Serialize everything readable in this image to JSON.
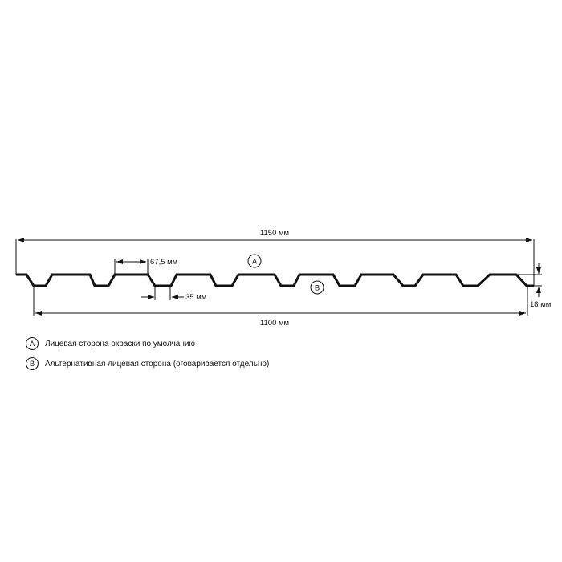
{
  "dimensions": {
    "overall_width": "1150 мм",
    "useful_width": "1100 мм",
    "top_width": "67,5 мм",
    "bottom_width": "35 мм",
    "height": "18 мм"
  },
  "markers": {
    "a": "A",
    "b": "B"
  },
  "legend": [
    {
      "marker": "A",
      "text": "Лицевая сторона окраски по умолчанию"
    },
    {
      "marker": "B",
      "text": "Альтернативная лицевая сторона (оговаривается отдельно)"
    }
  ]
}
